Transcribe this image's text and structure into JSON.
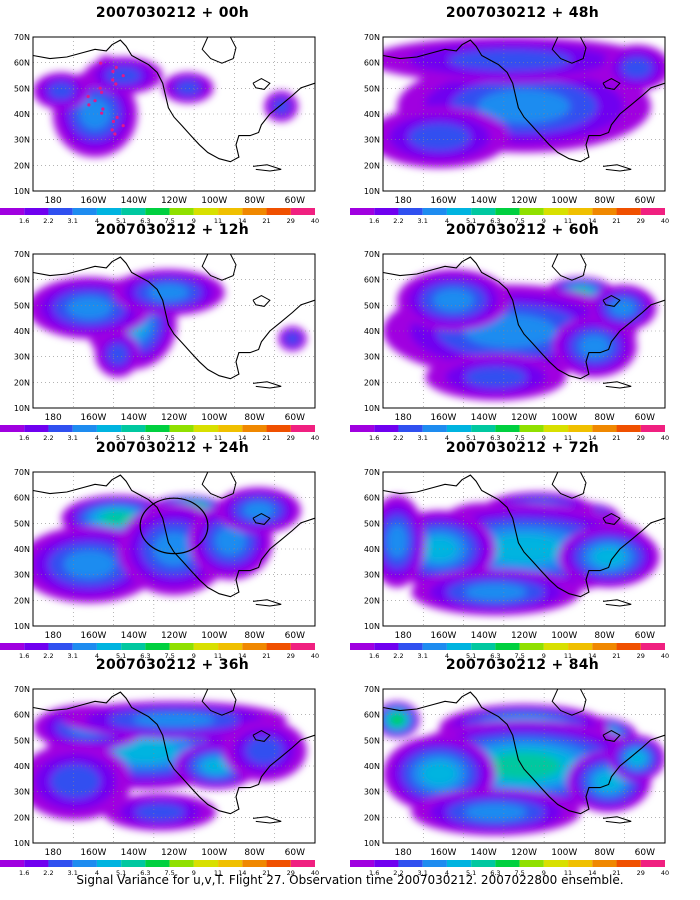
{
  "caption": "Signal Variance for u,v,T. Flight 27. Observation time 2007030212. 2007022800 ensemble.",
  "chart_data": {
    "type": "heatmap",
    "colorbar": {
      "labels": [
        "1.6",
        "2.2",
        "3.1",
        "4",
        "5.1",
        "6.3",
        "7.5",
        "9",
        "11",
        "14",
        "21",
        "29",
        "40"
      ],
      "colors": [
        "#a000e0",
        "#7000f0",
        "#3050f0",
        "#1e8cf0",
        "#00b4e0",
        "#00c8a0",
        "#00d040",
        "#90e000",
        "#d8e000",
        "#f0c000",
        "#f08800",
        "#f05000",
        "#f02080"
      ]
    },
    "lon_ticks": [
      "180",
      "160W",
      "140W",
      "120W",
      "100W",
      "80W",
      "60W"
    ],
    "lat_ticks": [
      "70N",
      "60N",
      "50N",
      "40N",
      "30N",
      "20N",
      "10N"
    ],
    "panels": [
      {
        "id": "00h",
        "title": "2007030212 + 00h",
        "peak_level": 8,
        "blobs": [
          [
            0.26,
            0.42,
            0.07,
            0.3,
            0.75
          ],
          [
            0.22,
            0.5,
            0.15,
            0.28,
            0.38
          ],
          [
            0.32,
            0.25,
            0.14,
            0.12,
            0.3
          ],
          [
            0.1,
            0.35,
            0.1,
            0.12,
            0.28
          ],
          [
            0.55,
            0.33,
            0.09,
            0.1,
            0.22
          ],
          [
            0.88,
            0.45,
            0.06,
            0.1,
            0.22
          ]
        ],
        "dots": true
      },
      {
        "id": "12h",
        "title": "2007030212 + 12h",
        "peak_level": 9,
        "blobs": [
          [
            0.42,
            0.3,
            0.12,
            0.14,
            0.85
          ],
          [
            0.35,
            0.45,
            0.16,
            0.3,
            0.45
          ],
          [
            0.2,
            0.35,
            0.22,
            0.2,
            0.3
          ],
          [
            0.48,
            0.25,
            0.2,
            0.15,
            0.35
          ],
          [
            0.3,
            0.65,
            0.08,
            0.15,
            0.25
          ],
          [
            0.92,
            0.55,
            0.05,
            0.08,
            0.22
          ]
        ]
      },
      {
        "id": "24h",
        "title": "2007030212 + 24h",
        "peak_level": 9,
        "blobs": [
          [
            0.55,
            0.25,
            0.14,
            0.1,
            0.85
          ],
          [
            0.3,
            0.3,
            0.2,
            0.15,
            0.5
          ],
          [
            0.2,
            0.6,
            0.25,
            0.25,
            0.38
          ],
          [
            0.5,
            0.5,
            0.2,
            0.3,
            0.38
          ],
          [
            0.7,
            0.45,
            0.15,
            0.25,
            0.28
          ],
          [
            0.8,
            0.25,
            0.15,
            0.15,
            0.28
          ]
        ],
        "circle": [
          0.5,
          0.35,
          0.12,
          0.18
        ]
      },
      {
        "id": "36h",
        "title": "2007030212 + 36h",
        "peak_level": 7,
        "blobs": [
          [
            0.4,
            0.4,
            0.35,
            0.25,
            0.55
          ],
          [
            0.65,
            0.5,
            0.15,
            0.15,
            0.6
          ],
          [
            0.2,
            0.25,
            0.2,
            0.15,
            0.45
          ],
          [
            0.5,
            0.2,
            0.4,
            0.12,
            0.4
          ],
          [
            0.15,
            0.6,
            0.2,
            0.25,
            0.35
          ],
          [
            0.45,
            0.8,
            0.2,
            0.12,
            0.3
          ],
          [
            0.82,
            0.4,
            0.15,
            0.2,
            0.35
          ]
        ]
      },
      {
        "id": "48h",
        "title": "2007030212 + 48h",
        "peak_level": 7,
        "blobs": [
          [
            0.3,
            0.35,
            0.15,
            0.15,
            0.55
          ],
          [
            0.75,
            0.55,
            0.12,
            0.1,
            0.58
          ],
          [
            0.55,
            0.22,
            0.12,
            0.08,
            0.48
          ],
          [
            0.5,
            0.45,
            0.45,
            0.3,
            0.4
          ],
          [
            0.45,
            0.15,
            0.5,
            0.15,
            0.35
          ],
          [
            0.2,
            0.65,
            0.25,
            0.2,
            0.32
          ],
          [
            0.9,
            0.2,
            0.12,
            0.15,
            0.3
          ]
        ]
      },
      {
        "id": "60h",
        "title": "2007030212 + 60h",
        "peak_level": 7,
        "blobs": [
          [
            0.7,
            0.25,
            0.12,
            0.1,
            0.65
          ],
          [
            0.35,
            0.4,
            0.12,
            0.12,
            0.58
          ],
          [
            0.45,
            0.5,
            0.45,
            0.3,
            0.45
          ],
          [
            0.25,
            0.3,
            0.2,
            0.2,
            0.45
          ],
          [
            0.75,
            0.6,
            0.15,
            0.2,
            0.45
          ],
          [
            0.4,
            0.8,
            0.25,
            0.15,
            0.35
          ],
          [
            0.85,
            0.35,
            0.12,
            0.15,
            0.4
          ]
        ]
      },
      {
        "id": "72h",
        "title": "2007030212 + 72h",
        "peak_level": 8,
        "blobs": [
          [
            0.35,
            0.35,
            0.15,
            0.15,
            0.62
          ],
          [
            0.72,
            0.3,
            0.12,
            0.1,
            0.68
          ],
          [
            0.55,
            0.25,
            0.2,
            0.12,
            0.55
          ],
          [
            0.5,
            0.5,
            0.45,
            0.3,
            0.48
          ],
          [
            0.2,
            0.5,
            0.2,
            0.25,
            0.45
          ],
          [
            0.8,
            0.55,
            0.18,
            0.2,
            0.45
          ],
          [
            0.4,
            0.78,
            0.3,
            0.15,
            0.38
          ],
          [
            0.05,
            0.45,
            0.1,
            0.3,
            0.35
          ]
        ]
      },
      {
        "id": "84h",
        "title": "2007030212 + 84h",
        "peak_level": 9,
        "blobs": [
          [
            0.75,
            0.3,
            0.15,
            0.12,
            0.8
          ],
          [
            0.05,
            0.2,
            0.08,
            0.12,
            0.7
          ],
          [
            0.5,
            0.25,
            0.3,
            0.15,
            0.55
          ],
          [
            0.3,
            0.45,
            0.15,
            0.15,
            0.6
          ],
          [
            0.5,
            0.5,
            0.45,
            0.3,
            0.5
          ],
          [
            0.2,
            0.55,
            0.2,
            0.25,
            0.48
          ],
          [
            0.8,
            0.6,
            0.15,
            0.2,
            0.48
          ],
          [
            0.4,
            0.8,
            0.3,
            0.15,
            0.38
          ],
          [
            0.9,
            0.45,
            0.1,
            0.15,
            0.45
          ]
        ]
      }
    ]
  }
}
